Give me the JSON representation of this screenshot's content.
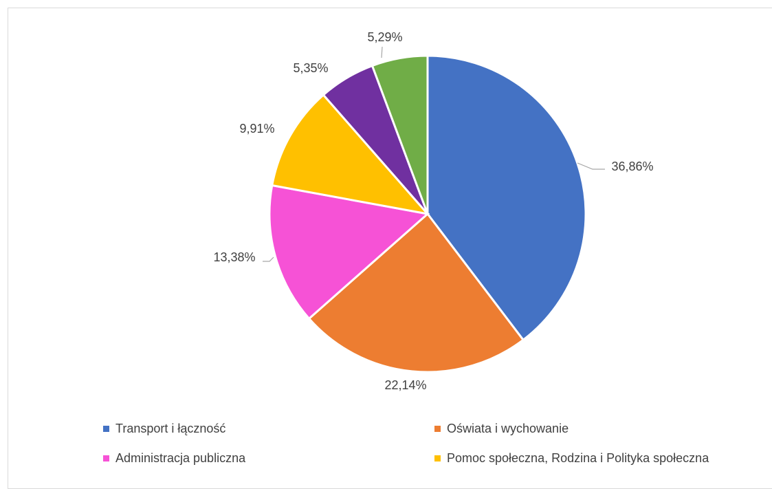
{
  "chart_data": {
    "type": "pie",
    "categories": [
      "Transport i łączność",
      "Oświata i wychowanie",
      "Administracja publiczna",
      "Pomoc społeczna, Rodzina i Polityka społeczna",
      "",
      ""
    ],
    "values": [
      36.86,
      22.14,
      13.38,
      9.91,
      5.35,
      5.29
    ],
    "value_labels": [
      "36,86%",
      "22,14%",
      "13,38%",
      "9,91%",
      "5,35%",
      "5,29%"
    ],
    "colors": [
      "#4472C4",
      "#ED7D31",
      "#F652D6",
      "#FFC000",
      "#7030A0",
      "#70AD47"
    ],
    "start_angle_deg": 0,
    "direction": "clockwise",
    "legend_position": "bottom",
    "title": ""
  }
}
